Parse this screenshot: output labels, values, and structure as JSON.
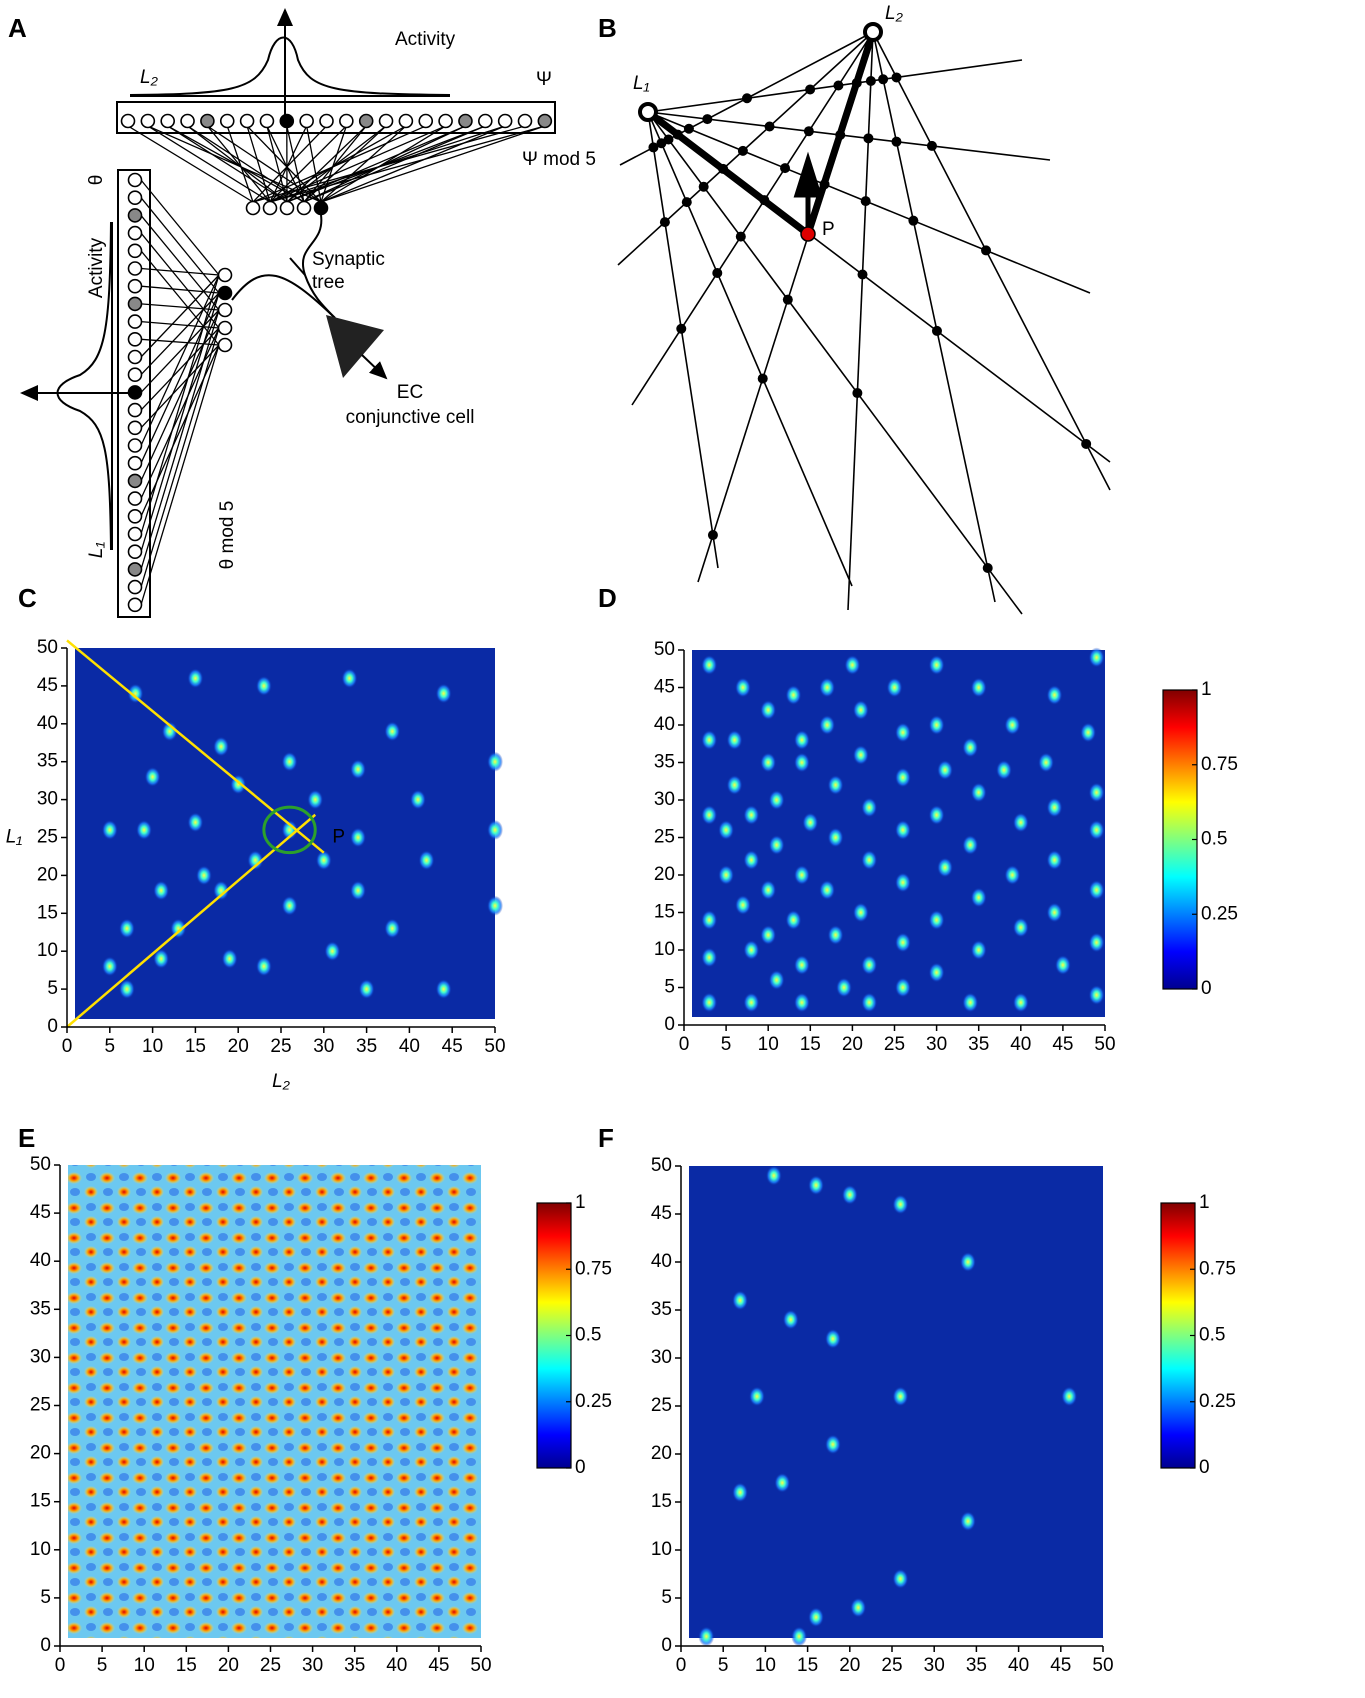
{
  "panel_A": {
    "label": "A",
    "activity_top": "Activity",
    "L2": "L₂",
    "psi": "Ψ",
    "psi_mod": "Ψ mod 5",
    "theta": "θ",
    "activity_left": "Activity",
    "L1": "L₁",
    "theta_mod": "θ mod 5",
    "synaptic": "Synaptic",
    "tree": "tree",
    "ec": "EC",
    "conjunctive": "conjunctive cell"
  },
  "panel_B": {
    "label": "B",
    "L1": "L₁",
    "L2": "L₂",
    "P": "P"
  },
  "chart_data": [
    {
      "type": "heatmap",
      "label": "C",
      "xlabel": "L₂",
      "ylabel": "L₁",
      "xlim": [
        0,
        50
      ],
      "ylim": [
        0,
        50
      ],
      "xticks": [
        0,
        5,
        10,
        15,
        20,
        25,
        30,
        35,
        40,
        45,
        50
      ],
      "yticks": [
        0,
        5,
        10,
        15,
        20,
        25,
        30,
        35,
        40,
        45,
        50
      ],
      "spots": [
        [
          5,
          26
        ],
        [
          9,
          26
        ],
        [
          15,
          27
        ],
        [
          26,
          26
        ],
        [
          34,
          25
        ],
        [
          50,
          26
        ],
        [
          8,
          44
        ],
        [
          15,
          46
        ],
        [
          23,
          45
        ],
        [
          33,
          46
        ],
        [
          44,
          44
        ],
        [
          12,
          39
        ],
        [
          18,
          37
        ],
        [
          26,
          35
        ],
        [
          38,
          39
        ],
        [
          50,
          35
        ],
        [
          10,
          33
        ],
        [
          20,
          32
        ],
        [
          29,
          30
        ],
        [
          34,
          34
        ],
        [
          41,
          30
        ],
        [
          11,
          18
        ],
        [
          16,
          20
        ],
        [
          22,
          22
        ],
        [
          30,
          22
        ],
        [
          42,
          22
        ],
        [
          7,
          13
        ],
        [
          13,
          13
        ],
        [
          18,
          18
        ],
        [
          26,
          16
        ],
        [
          34,
          18
        ],
        [
          38,
          13
        ],
        [
          50,
          16
        ],
        [
          5,
          8
        ],
        [
          11,
          9
        ],
        [
          19,
          9
        ],
        [
          23,
          8
        ],
        [
          31,
          10
        ],
        [
          44,
          5
        ],
        [
          35,
          5
        ],
        [
          7,
          5
        ]
      ],
      "lines": [
        [
          [
            0,
            0
          ],
          [
            29,
            28
          ]
        ],
        [
          [
            0,
            51
          ],
          [
            30,
            23
          ]
        ]
      ],
      "circle": {
        "x": 26,
        "y": 26,
        "r": 3
      },
      "annotation": {
        "text": "P",
        "x": 31,
        "y": 25
      }
    },
    {
      "type": "heatmap",
      "label": "D",
      "xlim": [
        0,
        50
      ],
      "ylim": [
        0,
        50
      ],
      "xticks": [
        0,
        5,
        10,
        15,
        20,
        25,
        30,
        35,
        40,
        45,
        50
      ],
      "yticks": [
        0,
        5,
        10,
        15,
        20,
        25,
        30,
        35,
        40,
        45,
        50
      ],
      "clim": [
        0,
        1
      ],
      "cticks": [
        0,
        0.25,
        0.5,
        0.75,
        1
      ],
      "spots": [
        [
          3,
          48
        ],
        [
          3,
          38
        ],
        [
          3,
          28
        ],
        [
          5,
          26
        ],
        [
          5,
          20
        ],
        [
          3,
          14
        ],
        [
          3,
          9
        ],
        [
          3,
          3
        ],
        [
          7,
          45
        ],
        [
          6,
          38
        ],
        [
          6,
          32
        ],
        [
          8,
          28
        ],
        [
          8,
          22
        ],
        [
          7,
          16
        ],
        [
          8,
          10
        ],
        [
          8,
          3
        ],
        [
          10,
          42
        ],
        [
          10,
          35
        ],
        [
          11,
          30
        ],
        [
          11,
          24
        ],
        [
          10,
          18
        ],
        [
          10,
          12
        ],
        [
          11,
          6
        ],
        [
          13,
          44
        ],
        [
          14,
          38
        ],
        [
          14,
          35
        ],
        [
          15,
          27
        ],
        [
          14,
          20
        ],
        [
          13,
          14
        ],
        [
          14,
          8
        ],
        [
          14,
          3
        ],
        [
          17,
          45
        ],
        [
          17,
          40
        ],
        [
          18,
          32
        ],
        [
          18,
          25
        ],
        [
          17,
          18
        ],
        [
          18,
          12
        ],
        [
          19,
          5
        ],
        [
          20,
          48
        ],
        [
          21,
          42
        ],
        [
          21,
          36
        ],
        [
          22,
          29
        ],
        [
          22,
          22
        ],
        [
          21,
          15
        ],
        [
          22,
          8
        ],
        [
          22,
          3
        ],
        [
          25,
          45
        ],
        [
          26,
          39
        ],
        [
          26,
          33
        ],
        [
          26,
          26
        ],
        [
          26,
          19
        ],
        [
          26,
          11
        ],
        [
          26,
          5
        ],
        [
          30,
          48
        ],
        [
          30,
          40
        ],
        [
          31,
          34
        ],
        [
          30,
          28
        ],
        [
          31,
          21
        ],
        [
          30,
          14
        ],
        [
          30,
          7
        ],
        [
          35,
          45
        ],
        [
          34,
          37
        ],
        [
          35,
          31
        ],
        [
          34,
          24
        ],
        [
          35,
          17
        ],
        [
          35,
          10
        ],
        [
          34,
          3
        ],
        [
          39,
          40
        ],
        [
          38,
          34
        ],
        [
          40,
          27
        ],
        [
          39,
          20
        ],
        [
          40,
          13
        ],
        [
          40,
          3
        ],
        [
          44,
          44
        ],
        [
          43,
          35
        ],
        [
          44,
          29
        ],
        [
          44,
          22
        ],
        [
          44,
          15
        ],
        [
          45,
          8
        ],
        [
          49,
          49
        ],
        [
          48,
          39
        ],
        [
          49,
          31
        ],
        [
          49,
          26
        ],
        [
          49,
          18
        ],
        [
          49,
          11
        ],
        [
          49,
          4
        ]
      ]
    },
    {
      "type": "heatmap",
      "label": "E",
      "xlim": [
        0,
        50
      ],
      "ylim": [
        0,
        50
      ],
      "xticks": [
        0,
        5,
        10,
        15,
        20,
        25,
        30,
        35,
        40,
        45,
        50
      ],
      "yticks": [
        0,
        5,
        10,
        15,
        20,
        25,
        30,
        35,
        40,
        45,
        50
      ],
      "clim": [
        0,
        1
      ],
      "cticks": [
        0,
        0.25,
        0.5,
        0.75,
        1
      ]
    },
    {
      "type": "heatmap",
      "label": "F",
      "xlim": [
        0,
        50
      ],
      "ylim": [
        0,
        50
      ],
      "xticks": [
        0,
        5,
        10,
        15,
        20,
        25,
        30,
        35,
        40,
        45,
        50
      ],
      "yticks": [
        0,
        5,
        10,
        15,
        20,
        25,
        30,
        35,
        40,
        45,
        50
      ],
      "clim": [
        0,
        1
      ],
      "cticks": [
        0,
        0.25,
        0.5,
        0.75,
        1
      ],
      "spots": [
        [
          11,
          49
        ],
        [
          16,
          48
        ],
        [
          20,
          47
        ],
        [
          26,
          46
        ],
        [
          34,
          40
        ],
        [
          7,
          36
        ],
        [
          13,
          34
        ],
        [
          18,
          32
        ],
        [
          9,
          26
        ],
        [
          26,
          26
        ],
        [
          46,
          26
        ],
        [
          18,
          21
        ],
        [
          7,
          16
        ],
        [
          12,
          17
        ],
        [
          34,
          13
        ],
        [
          26,
          7
        ],
        [
          21,
          4
        ],
        [
          16,
          3
        ],
        [
          14,
          1
        ],
        [
          3,
          1
        ]
      ]
    }
  ]
}
